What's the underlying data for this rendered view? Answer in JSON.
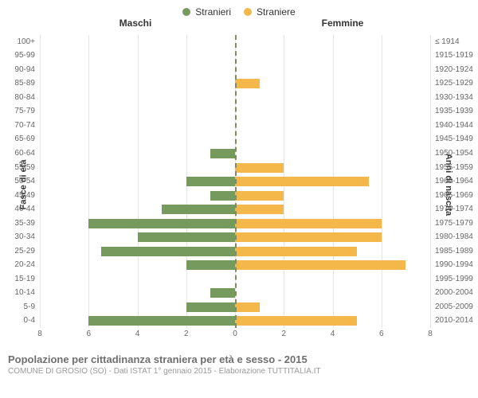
{
  "chart": {
    "type": "population-pyramid",
    "legend": [
      {
        "label": "Stranieri",
        "color": "#76995e"
      },
      {
        "label": "Straniere",
        "color": "#f4b84a"
      }
    ],
    "column_headers": {
      "left": "Maschi",
      "right": "Femmine"
    },
    "y_label_left": "Fasce di età",
    "y_label_right": "Anni di nascita",
    "x_max": 8,
    "x_ticks_left": [
      8,
      6,
      4,
      2,
      0
    ],
    "x_ticks_right": [
      0,
      2,
      4,
      6,
      8
    ],
    "grid_color": "#e6e6e6",
    "zero_line_color": "#888860",
    "bar_color_left": "#76995e",
    "bar_color_right": "#f4b84a",
    "rows": [
      {
        "age": "100+",
        "birth": "≤ 1914",
        "m": 0,
        "f": 0
      },
      {
        "age": "95-99",
        "birth": "1915-1919",
        "m": 0,
        "f": 0
      },
      {
        "age": "90-94",
        "birth": "1920-1924",
        "m": 0,
        "f": 0
      },
      {
        "age": "85-89",
        "birth": "1925-1929",
        "m": 0,
        "f": 1
      },
      {
        "age": "80-84",
        "birth": "1930-1934",
        "m": 0,
        "f": 0
      },
      {
        "age": "75-79",
        "birth": "1935-1939",
        "m": 0,
        "f": 0
      },
      {
        "age": "70-74",
        "birth": "1940-1944",
        "m": 0,
        "f": 0
      },
      {
        "age": "65-69",
        "birth": "1945-1949",
        "m": 0,
        "f": 0
      },
      {
        "age": "60-64",
        "birth": "1950-1954",
        "m": 1,
        "f": 0
      },
      {
        "age": "55-59",
        "birth": "1955-1959",
        "m": 0,
        "f": 2
      },
      {
        "age": "50-54",
        "birth": "1960-1964",
        "m": 2,
        "f": 5.5
      },
      {
        "age": "45-49",
        "birth": "1965-1969",
        "m": 1,
        "f": 2
      },
      {
        "age": "40-44",
        "birth": "1970-1974",
        "m": 3,
        "f": 2
      },
      {
        "age": "35-39",
        "birth": "1975-1979",
        "m": 6,
        "f": 6
      },
      {
        "age": "30-34",
        "birth": "1980-1984",
        "m": 4,
        "f": 6
      },
      {
        "age": "25-29",
        "birth": "1985-1989",
        "m": 5.5,
        "f": 5
      },
      {
        "age": "20-24",
        "birth": "1990-1994",
        "m": 2,
        "f": 7
      },
      {
        "age": "15-19",
        "birth": "1995-1999",
        "m": 0,
        "f": 0
      },
      {
        "age": "10-14",
        "birth": "2000-2004",
        "m": 1,
        "f": 0
      },
      {
        "age": "5-9",
        "birth": "2005-2009",
        "m": 2,
        "f": 1
      },
      {
        "age": "0-4",
        "birth": "2010-2014",
        "m": 6,
        "f": 5
      }
    ],
    "title": "Popolazione per cittadinanza straniera per età e sesso - 2015",
    "subtitle": "COMUNE DI GROSIO (SO) - Dati ISTAT 1° gennaio 2015 - Elaborazione TUTTITALIA.IT"
  }
}
